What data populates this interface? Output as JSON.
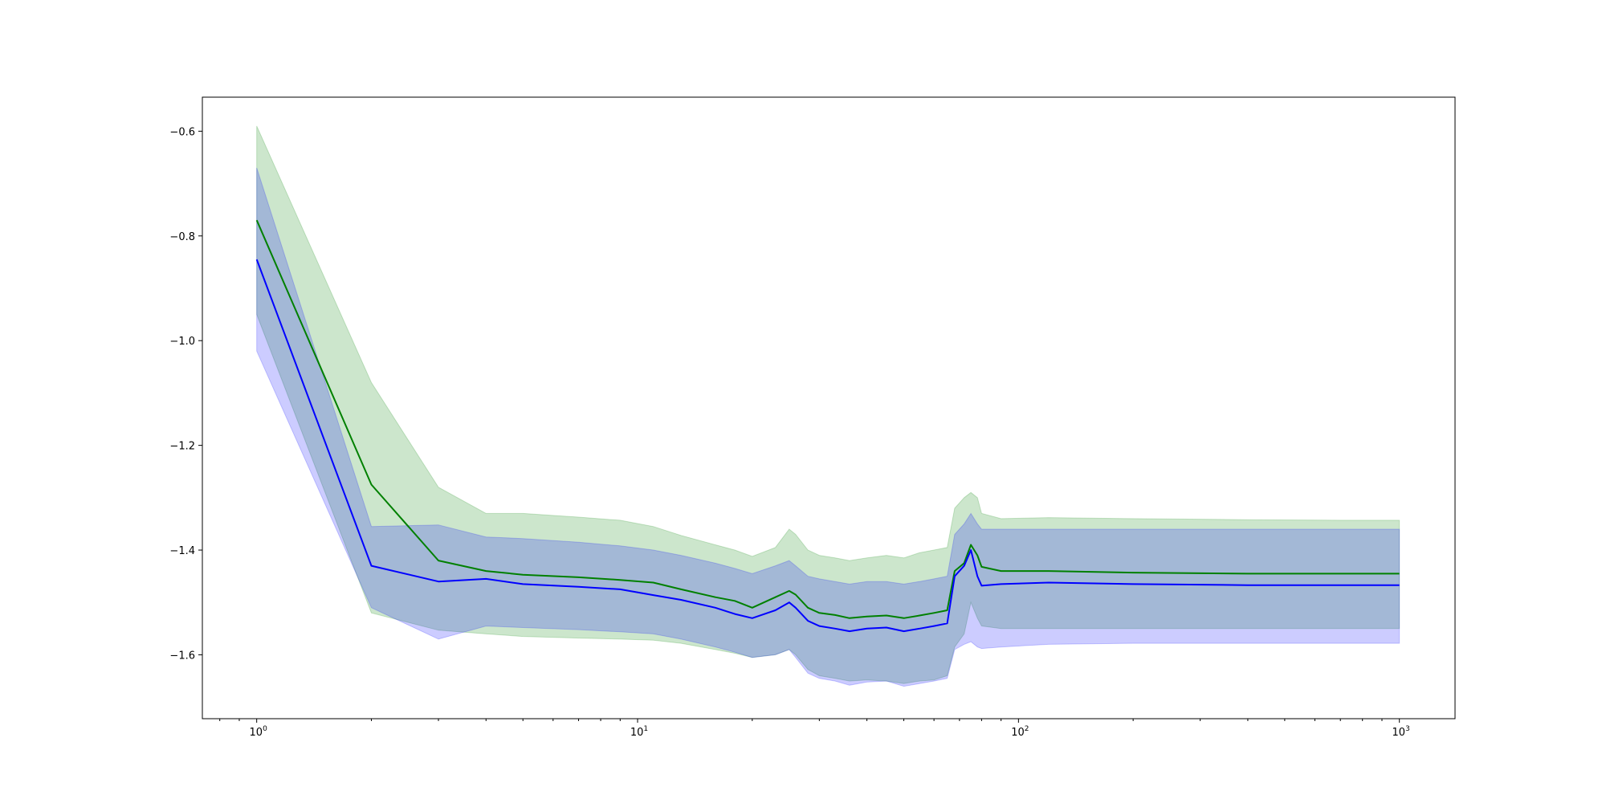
{
  "chart_data": {
    "type": "line",
    "title": "",
    "xlabel": "",
    "ylabel": "",
    "xscale": "log",
    "xlim": [
      0.72,
      1400
    ],
    "ylim": [
      -1.722,
      -0.535
    ],
    "grid": false,
    "legend": "none",
    "x_ticks": [
      {
        "base": "10",
        "exp": "0",
        "value": 1
      },
      {
        "base": "10",
        "exp": "1",
        "value": 10
      },
      {
        "base": "10",
        "exp": "2",
        "value": 100
      },
      {
        "base": "10",
        "exp": "3",
        "value": 1000
      }
    ],
    "y_ticks": [
      {
        "label": "−0.6",
        "value": -0.6
      },
      {
        "label": "−0.8",
        "value": -0.8
      },
      {
        "label": "−1.0",
        "value": -1.0
      },
      {
        "label": "−1.2",
        "value": -1.2
      },
      {
        "label": "−1.4",
        "value": -1.4
      },
      {
        "label": "−1.6",
        "value": -1.6
      }
    ],
    "series": [
      {
        "color": "#008000",
        "band_color": "#008000",
        "band_opacity": 0.2,
        "x": [
          1,
          2,
          3,
          4,
          5,
          7,
          9,
          11,
          13,
          16,
          18,
          20,
          23,
          25,
          26,
          28,
          30,
          33,
          36,
          40,
          45,
          50,
          55,
          60,
          65,
          68,
          72,
          75,
          78,
          80,
          90,
          120,
          200,
          400,
          700,
          1000
        ],
        "y": [
          -0.77,
          -1.275,
          -1.42,
          -1.44,
          -1.447,
          -1.452,
          -1.457,
          -1.462,
          -1.475,
          -1.49,
          -1.497,
          -1.51,
          -1.49,
          -1.478,
          -1.485,
          -1.51,
          -1.52,
          -1.524,
          -1.53,
          -1.527,
          -1.525,
          -1.53,
          -1.525,
          -1.52,
          -1.515,
          -1.44,
          -1.425,
          -1.39,
          -1.41,
          -1.432,
          -1.44,
          -1.44,
          -1.443,
          -1.445,
          -1.445,
          -1.445
        ],
        "upper": [
          -0.59,
          -1.08,
          -1.28,
          -1.33,
          -1.33,
          -1.337,
          -1.343,
          -1.355,
          -1.372,
          -1.39,
          -1.4,
          -1.412,
          -1.395,
          -1.36,
          -1.37,
          -1.4,
          -1.41,
          -1.415,
          -1.42,
          -1.415,
          -1.41,
          -1.415,
          -1.405,
          -1.4,
          -1.395,
          -1.32,
          -1.3,
          -1.29,
          -1.3,
          -1.33,
          -1.34,
          -1.338,
          -1.34,
          -1.342,
          -1.343,
          -1.343
        ],
        "lower": [
          -0.95,
          -1.52,
          -1.553,
          -1.56,
          -1.565,
          -1.568,
          -1.57,
          -1.572,
          -1.578,
          -1.59,
          -1.597,
          -1.605,
          -1.6,
          -1.59,
          -1.6,
          -1.628,
          -1.64,
          -1.645,
          -1.65,
          -1.648,
          -1.65,
          -1.655,
          -1.65,
          -1.648,
          -1.64,
          -1.585,
          -1.56,
          -1.5,
          -1.53,
          -1.545,
          -1.55,
          -1.55,
          -1.55,
          -1.55,
          -1.55,
          -1.55
        ]
      },
      {
        "color": "#0000ff",
        "band_color": "#0000ff",
        "band_opacity": 0.2,
        "x": [
          1,
          2,
          3,
          4,
          5,
          7,
          9,
          11,
          13,
          16,
          18,
          20,
          23,
          25,
          26,
          28,
          30,
          33,
          36,
          40,
          45,
          50,
          55,
          60,
          65,
          68,
          72,
          75,
          78,
          80,
          90,
          120,
          200,
          400,
          700,
          1000
        ],
        "y": [
          -0.845,
          -1.43,
          -1.46,
          -1.455,
          -1.465,
          -1.47,
          -1.475,
          -1.486,
          -1.495,
          -1.51,
          -1.522,
          -1.53,
          -1.515,
          -1.5,
          -1.51,
          -1.535,
          -1.545,
          -1.55,
          -1.555,
          -1.55,
          -1.548,
          -1.555,
          -1.55,
          -1.545,
          -1.54,
          -1.45,
          -1.43,
          -1.4,
          -1.45,
          -1.468,
          -1.465,
          -1.462,
          -1.465,
          -1.467,
          -1.467,
          -1.467
        ],
        "upper": [
          -0.67,
          -1.355,
          -1.352,
          -1.375,
          -1.378,
          -1.385,
          -1.392,
          -1.4,
          -1.41,
          -1.425,
          -1.435,
          -1.445,
          -1.43,
          -1.42,
          -1.43,
          -1.45,
          -1.455,
          -1.46,
          -1.465,
          -1.46,
          -1.46,
          -1.465,
          -1.46,
          -1.455,
          -1.45,
          -1.37,
          -1.35,
          -1.33,
          -1.35,
          -1.36,
          -1.36,
          -1.36,
          -1.36,
          -1.36,
          -1.36,
          -1.36
        ],
        "lower": [
          -1.02,
          -1.51,
          -1.57,
          -1.545,
          -1.548,
          -1.552,
          -1.556,
          -1.56,
          -1.57,
          -1.585,
          -1.595,
          -1.605,
          -1.6,
          -1.59,
          -1.605,
          -1.635,
          -1.645,
          -1.65,
          -1.658,
          -1.652,
          -1.65,
          -1.66,
          -1.655,
          -1.65,
          -1.645,
          -1.59,
          -1.58,
          -1.575,
          -1.585,
          -1.588,
          -1.585,
          -1.58,
          -1.578,
          -1.578,
          -1.578,
          -1.578
        ]
      }
    ]
  }
}
